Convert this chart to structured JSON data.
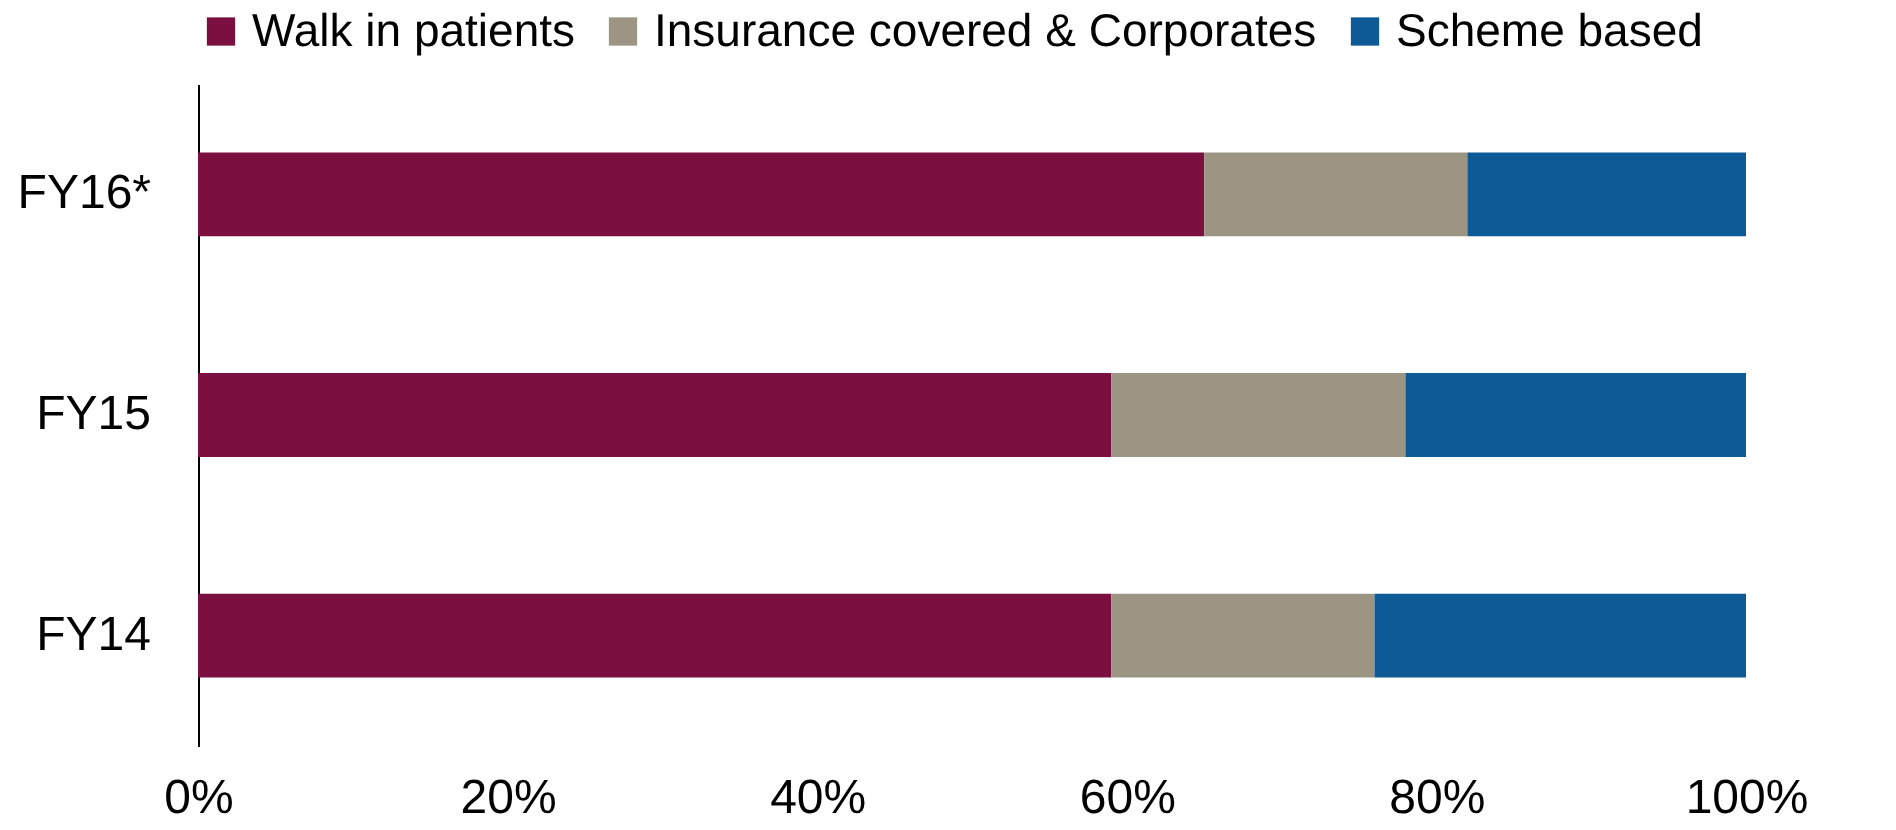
{
  "chart_data": {
    "type": "bar",
    "orientation": "horizontal",
    "stacked": true,
    "legend": "top",
    "grid": false,
    "categories": [
      "FY16*",
      "FY15",
      "FY14"
    ],
    "series": [
      {
        "name": "Walk in patients",
        "color": "#7b1040",
        "values": [
          65,
          59,
          59
        ]
      },
      {
        "name": "Insurance covered & Corporates",
        "color": "#9c9583",
        "values": [
          17,
          19,
          17
        ]
      },
      {
        "name": "Scheme based",
        "color": "#0d5a96",
        "values": [
          18,
          22,
          24
        ]
      }
    ],
    "xlim": [
      0,
      100
    ],
    "xticks": [
      {
        "value": 0,
        "label": "0%"
      },
      {
        "value": 20,
        "label": "20%"
      },
      {
        "value": 40,
        "label": "40%"
      },
      {
        "value": 60,
        "label": "60%"
      },
      {
        "value": 80,
        "label": "80%"
      },
      {
        "value": 100,
        "label": "100%"
      }
    ]
  }
}
